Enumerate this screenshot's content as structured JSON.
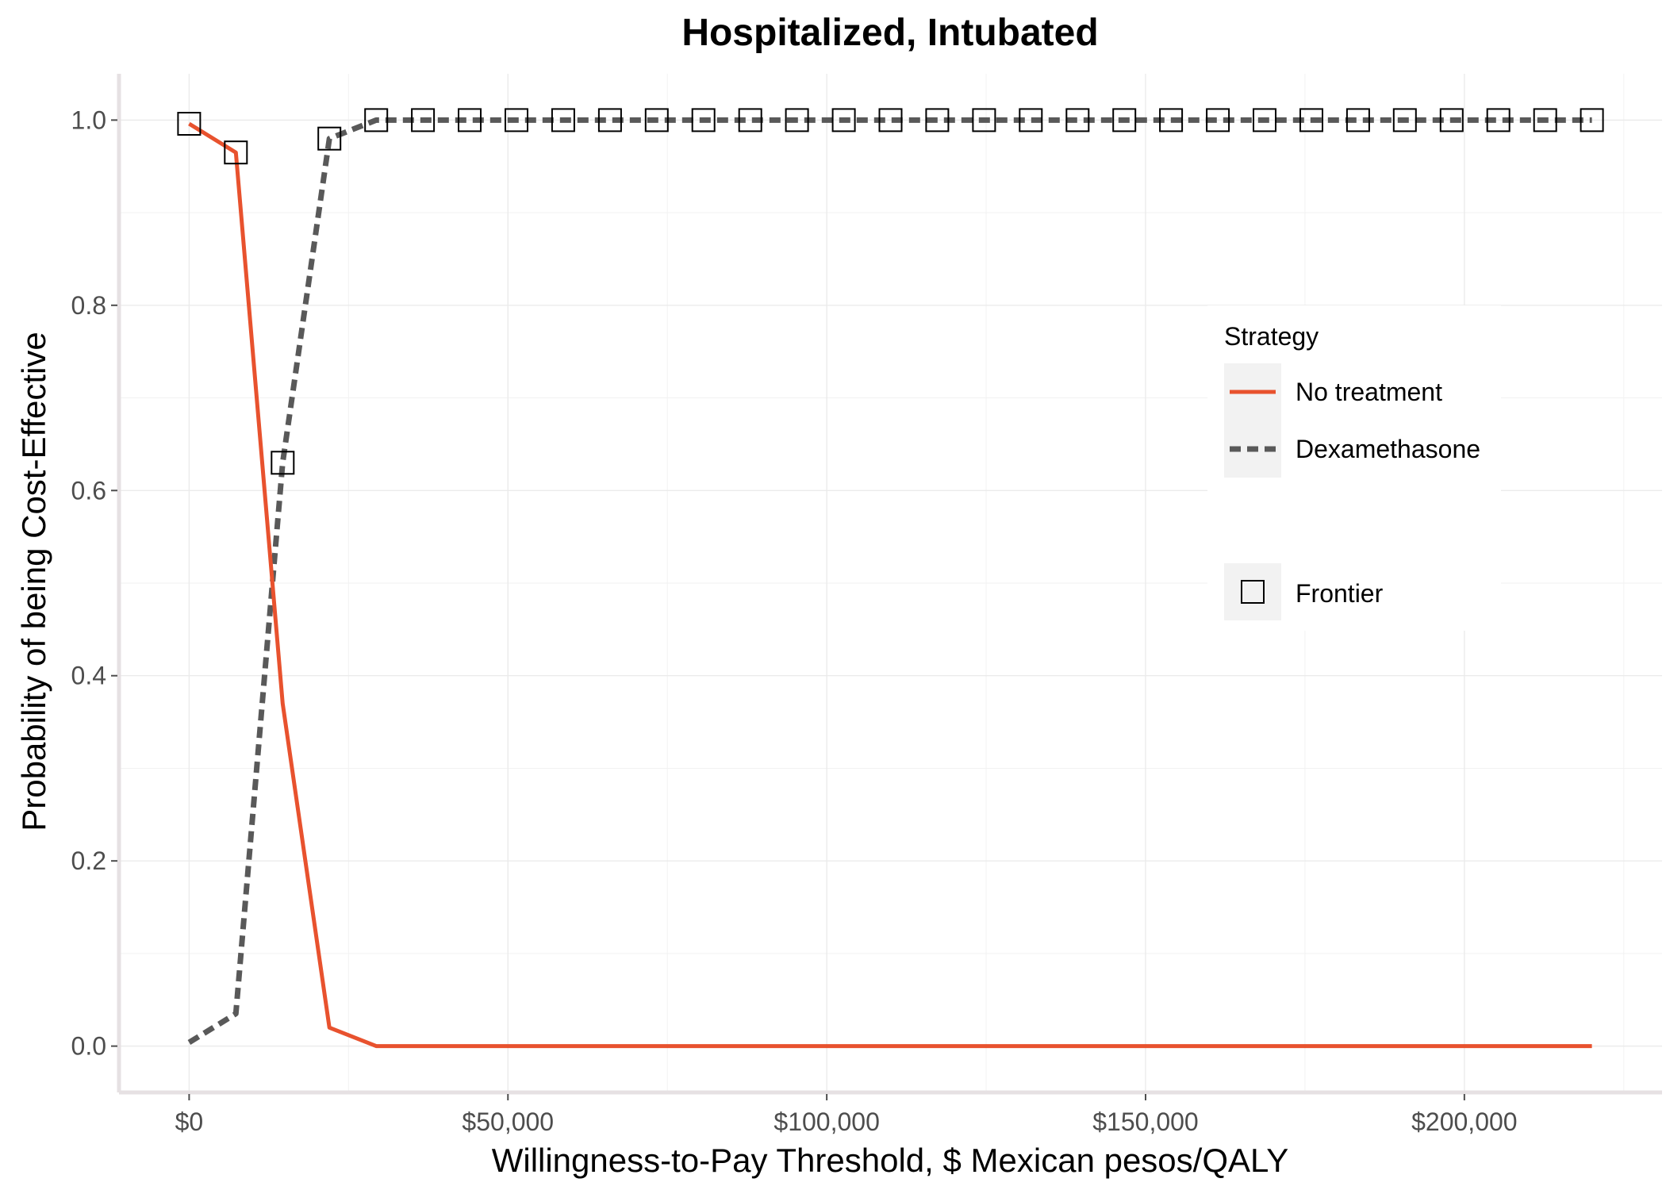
{
  "chart_data": {
    "type": "line",
    "title": "Hospitalized, Intubated",
    "xlabel": "Willingness-to-Pay Threshold, $ Mexican pesos/QALY",
    "ylabel": "Probability of being Cost-Effective",
    "xlim": [
      -11000,
      231000
    ],
    "ylim": [
      -0.05,
      1.05
    ],
    "x_ticks": [
      0,
      50000,
      100000,
      150000,
      200000
    ],
    "x_tick_labels": [
      "$0",
      "$50,000",
      "$100,000",
      "$150,000",
      "$200,000"
    ],
    "y_ticks": [
      0.0,
      0.2,
      0.4,
      0.6,
      0.8,
      1.0
    ],
    "y_tick_labels": [
      "0.0",
      "0.2",
      "0.4",
      "0.6",
      "0.8",
      "1.0"
    ],
    "grid": true,
    "legend_position": "right",
    "legend_title": "Strategy",
    "x": [
      0,
      7333,
      14667,
      22000,
      29333,
      36667,
      44000,
      51333,
      58667,
      66000,
      73333,
      80667,
      88000,
      95333,
      102667,
      110000,
      117333,
      124667,
      132000,
      139333,
      146667,
      154000,
      161333,
      168667,
      176000,
      183333,
      190667,
      198000,
      205333,
      212667,
      220000
    ],
    "series": [
      {
        "name": "No treatment",
        "color": "#E8522E",
        "dash": "solid",
        "values": [
          0.996,
          0.965,
          0.37,
          0.02,
          0.0,
          0.0,
          0.0,
          0.0,
          0.0,
          0.0,
          0.0,
          0.0,
          0.0,
          0.0,
          0.0,
          0.0,
          0.0,
          0.0,
          0.0,
          0.0,
          0.0,
          0.0,
          0.0,
          0.0,
          0.0,
          0.0,
          0.0,
          0.0,
          0.0,
          0.0,
          0.0
        ]
      },
      {
        "name": "Dexamethasone",
        "color": "#595959",
        "dash": "dashed",
        "values": [
          0.004,
          0.035,
          0.63,
          0.98,
          1.0,
          1.0,
          1.0,
          1.0,
          1.0,
          1.0,
          1.0,
          1.0,
          1.0,
          1.0,
          1.0,
          1.0,
          1.0,
          1.0,
          1.0,
          1.0,
          1.0,
          1.0,
          1.0,
          1.0,
          1.0,
          1.0,
          1.0,
          1.0,
          1.0,
          1.0,
          1.0
        ]
      }
    ],
    "frontier": {
      "name": "Frontier",
      "marker": "open-square",
      "x": [
        0,
        7333,
        14667,
        22000,
        29333,
        36667,
        44000,
        51333,
        58667,
        66000,
        73333,
        80667,
        88000,
        95333,
        102667,
        110000,
        117333,
        124667,
        132000,
        139333,
        146667,
        154000,
        161333,
        168667,
        176000,
        183333,
        190667,
        198000,
        205333,
        212667,
        220000
      ],
      "y": [
        0.996,
        0.965,
        0.63,
        0.98,
        1.0,
        1.0,
        1.0,
        1.0,
        1.0,
        1.0,
        1.0,
        1.0,
        1.0,
        1.0,
        1.0,
        1.0,
        1.0,
        1.0,
        1.0,
        1.0,
        1.0,
        1.0,
        1.0,
        1.0,
        1.0,
        1.0,
        1.0,
        1.0,
        1.0,
        1.0,
        1.0
      ]
    }
  }
}
